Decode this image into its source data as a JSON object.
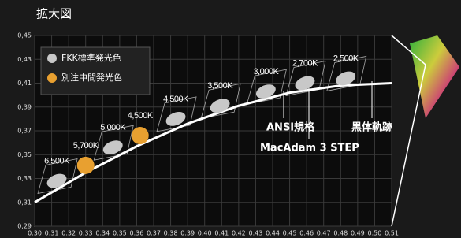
{
  "chart_data": {
    "type": "scatter",
    "title": "拡大図",
    "xlim": [
      0.3,
      0.51
    ],
    "ylim": [
      0.29,
      0.45
    ],
    "xticks": [
      {
        "value": 0.3,
        "label": "0.30"
      },
      0.31,
      0.32,
      0.33,
      0.34,
      0.35,
      0.36,
      0.37,
      0.38,
      0.39,
      {
        "value": 0.4,
        "label": "0.40"
      },
      0.41,
      0.42,
      0.43,
      0.44,
      0.45,
      0.46,
      0.47,
      0.48,
      0.49,
      {
        "value": 0.5,
        "label": "0.50"
      },
      0.51
    ],
    "yticks": [
      {
        "value": 0.45,
        "label": "0,45"
      },
      {
        "value": 0.43,
        "label": "0,43"
      },
      {
        "value": 0.41,
        "label": "0,41"
      },
      {
        "value": 0.39,
        "label": "0,39"
      },
      {
        "value": 0.37,
        "label": "0,37"
      },
      {
        "value": 0.35,
        "label": "0,35"
      },
      {
        "value": 0.33,
        "label": "0,33"
      },
      {
        "value": 0.31,
        "label": "0,31"
      },
      {
        "value": 0.29,
        "label": "0,29"
      }
    ],
    "grid": true,
    "series": [
      {
        "name": "FKK標準発光色",
        "color": "#c8c8c8",
        "x": [
          0.313,
          0.346,
          0.383,
          0.409,
          0.436,
          0.459,
          0.483
        ],
        "values": [
          0.328,
          0.356,
          0.38,
          0.391,
          0.403,
          0.41,
          0.414
        ],
        "labels": [
          "6,500K",
          "5,000K",
          "4,500K",
          "3,500K",
          "3,000K",
          "2,700K",
          "2,500K"
        ]
      },
      {
        "name": "別注中間発光色",
        "color": "#e8a030",
        "x": [
          0.33,
          0.362
        ],
        "values": [
          0.341,
          0.366
        ],
        "labels": [
          "5,700K",
          "4,500K"
        ]
      }
    ],
    "curve": {
      "name": "黒体軌跡",
      "color": "#ffffff",
      "x": [
        0.3,
        0.33,
        0.36,
        0.39,
        0.42,
        0.45,
        0.48,
        0.51
      ],
      "values": [
        0.31,
        0.335,
        0.357,
        0.376,
        0.391,
        0.402,
        0.408,
        0.41
      ]
    },
    "annotations": [
      "ANSI規格",
      "MacAdam 3 STEP"
    ]
  }
}
